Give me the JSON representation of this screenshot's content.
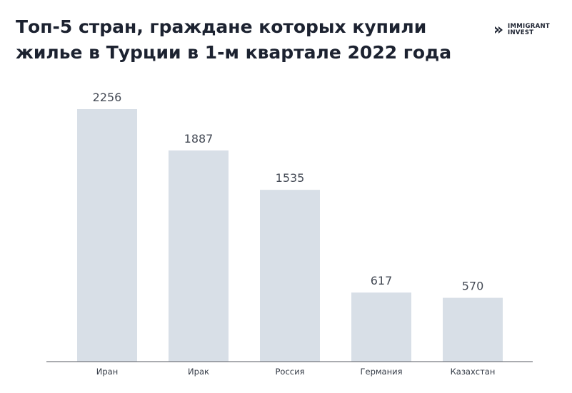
{
  "header": {
    "title_line1": "Топ-5 стран, граждане которых купили",
    "title_line2": "жилье в Турции в 1-м квартале 2022 года"
  },
  "logo": {
    "line1": "IMMIGRANT",
    "line2": "INVEST",
    "icon": "chevron-logo-icon"
  },
  "colors": {
    "bar": "#d8dfe7",
    "axis": "#555a62",
    "title": "#1c2230"
  },
  "chart_data": {
    "type": "bar",
    "categories": [
      "Иран",
      "Ирак",
      "Россия",
      "Германия",
      "Казахстан"
    ],
    "values": [
      2256,
      1887,
      1535,
      617,
      570
    ],
    "title": "Топ-5 стран, граждане которых купили жилье в Турции в 1-м квартале 2022 года",
    "xlabel": "",
    "ylabel": "",
    "ylim": [
      0,
      2256
    ],
    "grid": false,
    "data_labels": true
  }
}
